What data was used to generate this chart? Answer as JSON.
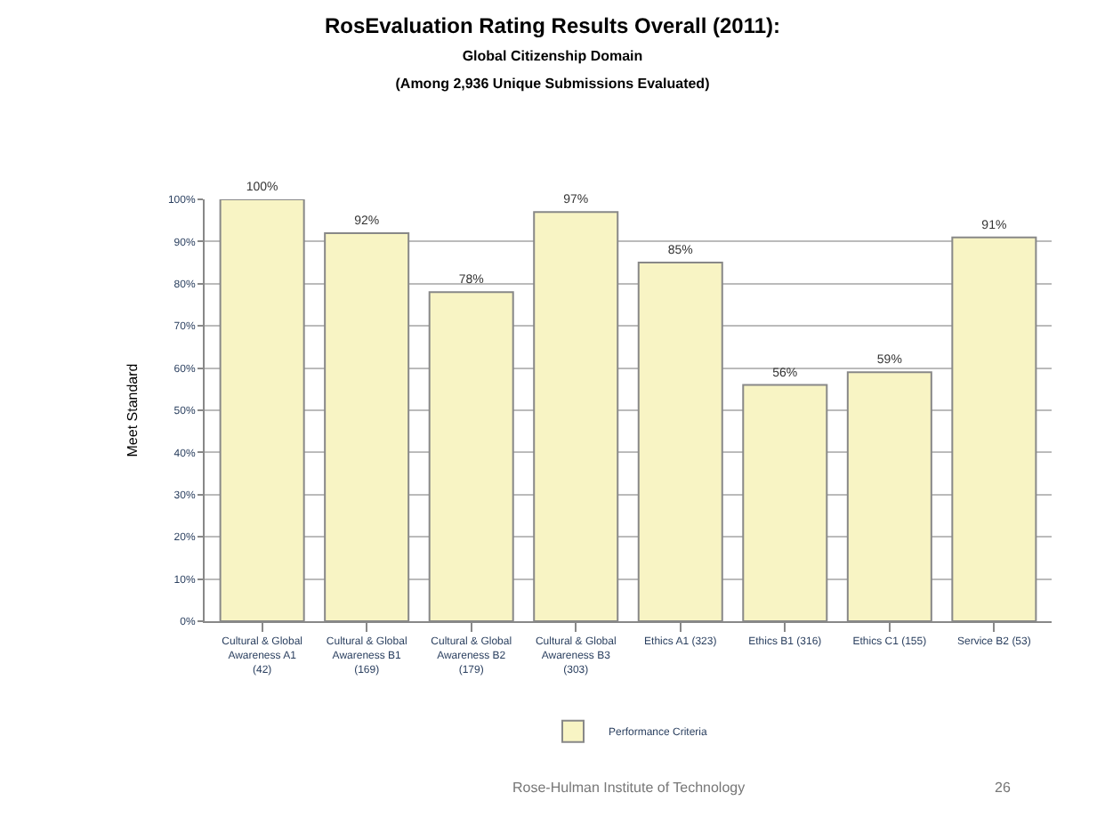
{
  "chart_data": {
    "type": "bar",
    "title": "RosEvaluation Rating Results Overall (2011):",
    "subtitle": "Global Citizenship Domain\n(Among 2,936 Unique Submissions Evaluated)",
    "ylabel": "Meet Standard",
    "categories": [
      "Cultural & Global\nAwareness A1\n(42)",
      "Cultural & Global\nAwareness B1\n(169)",
      "Cultural & Global\nAwareness B2\n(179)",
      "Cultural & Global\nAwareness B3\n(303)",
      "Ethics A1 (323)",
      "Ethics B1 (316)",
      "Ethics C1 (155)",
      "Service B2 (53)"
    ],
    "series": [
      {
        "name": "Performance Criteria",
        "color": "#f8f4c4",
        "values": [
          100,
          92,
          78,
          97,
          85,
          56,
          59,
          91
        ]
      }
    ],
    "value_labels": [
      "100%",
      "92%",
      "78%",
      "97%",
      "85%",
      "56%",
      "59%",
      "91%"
    ],
    "ylim": [
      0,
      100
    ],
    "yticks": [
      {
        "value": 0,
        "label": "0%"
      },
      {
        "value": 10,
        "label": "10%"
      },
      {
        "value": 20,
        "label": "20%"
      },
      {
        "value": 30,
        "label": "30%"
      },
      {
        "value": 40,
        "label": "40%"
      },
      {
        "value": 50,
        "label": "50%"
      },
      {
        "value": 60,
        "label": "60%"
      },
      {
        "value": 70,
        "label": "70%"
      },
      {
        "value": 80,
        "label": "80%"
      },
      {
        "value": 90,
        "label": "90%"
      },
      {
        "value": 100,
        "label": "100%"
      }
    ],
    "grid": "y",
    "legend": "bottom",
    "annotations": [
      "Rose-Hulman Institute of Technology",
      "26"
    ]
  }
}
